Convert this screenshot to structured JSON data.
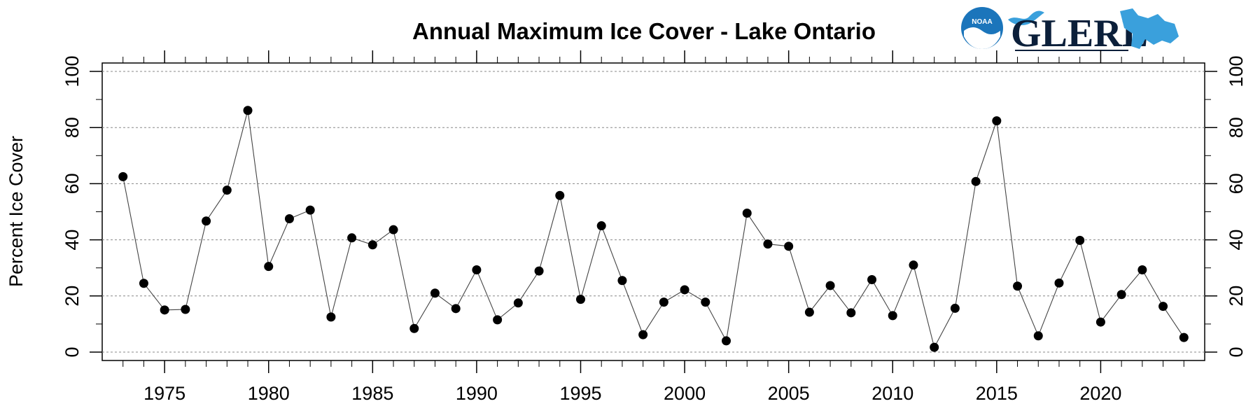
{
  "chart_data": {
    "type": "line",
    "title": "Annual Maximum Ice Cover - Lake Ontario",
    "xlabel": "",
    "ylabel": "Percent Ice Cover",
    "xlim": [
      1972,
      2025
    ],
    "ylim": [
      -3,
      103
    ],
    "x_ticks": [
      1975,
      1980,
      1985,
      1990,
      1995,
      2000,
      2005,
      2010,
      2015,
      2020
    ],
    "y_ticks": [
      0,
      20,
      40,
      60,
      80,
      100
    ],
    "grid": "horizontal dotted",
    "markers": "filled circles",
    "series": [
      {
        "x": [
          1973,
          1974,
          1975,
          1976,
          1977,
          1978,
          1979,
          1980,
          1981,
          1982,
          1983,
          1984,
          1985,
          1986,
          1987,
          1988,
          1989,
          1990,
          1991,
          1992,
          1993,
          1994,
          1995,
          1996,
          1997,
          1998,
          1999,
          2000,
          2001,
          2002,
          2003,
          2004,
          2005,
          2006,
          2007,
          2008,
          2009,
          2010,
          2011,
          2012,
          2013,
          2014,
          2015,
          2016,
          2017,
          2018,
          2019,
          2020,
          2021,
          2022,
          2023,
          2024
        ],
        "values": [
          62.5,
          24.5,
          15,
          15.2,
          46.7,
          57.7,
          86.1,
          30.5,
          47.5,
          50.6,
          12.5,
          40.7,
          38.2,
          43.6,
          8.4,
          21,
          15.5,
          29.3,
          11.5,
          17.5,
          28.9,
          55.8,
          18.8,
          45,
          25.5,
          6.2,
          17.8,
          22.2,
          17.8,
          4,
          49.5,
          38.5,
          37.7,
          14.2,
          23.7,
          14,
          25.8,
          13,
          31,
          1.7,
          15.6,
          60.8,
          82.4,
          23.5,
          5.8,
          24.6,
          39.8,
          10.7,
          20.5,
          29.3,
          16.3,
          5.2
        ]
      }
    ]
  },
  "logos": {
    "noaa_text": "NOAA",
    "glerl_text": "GLERL"
  },
  "colors": {
    "line": "#444444",
    "marker": "#000000",
    "grid": "#888888",
    "logo_blue": "#1b75bb",
    "logo_light": "#3aa0dc"
  }
}
